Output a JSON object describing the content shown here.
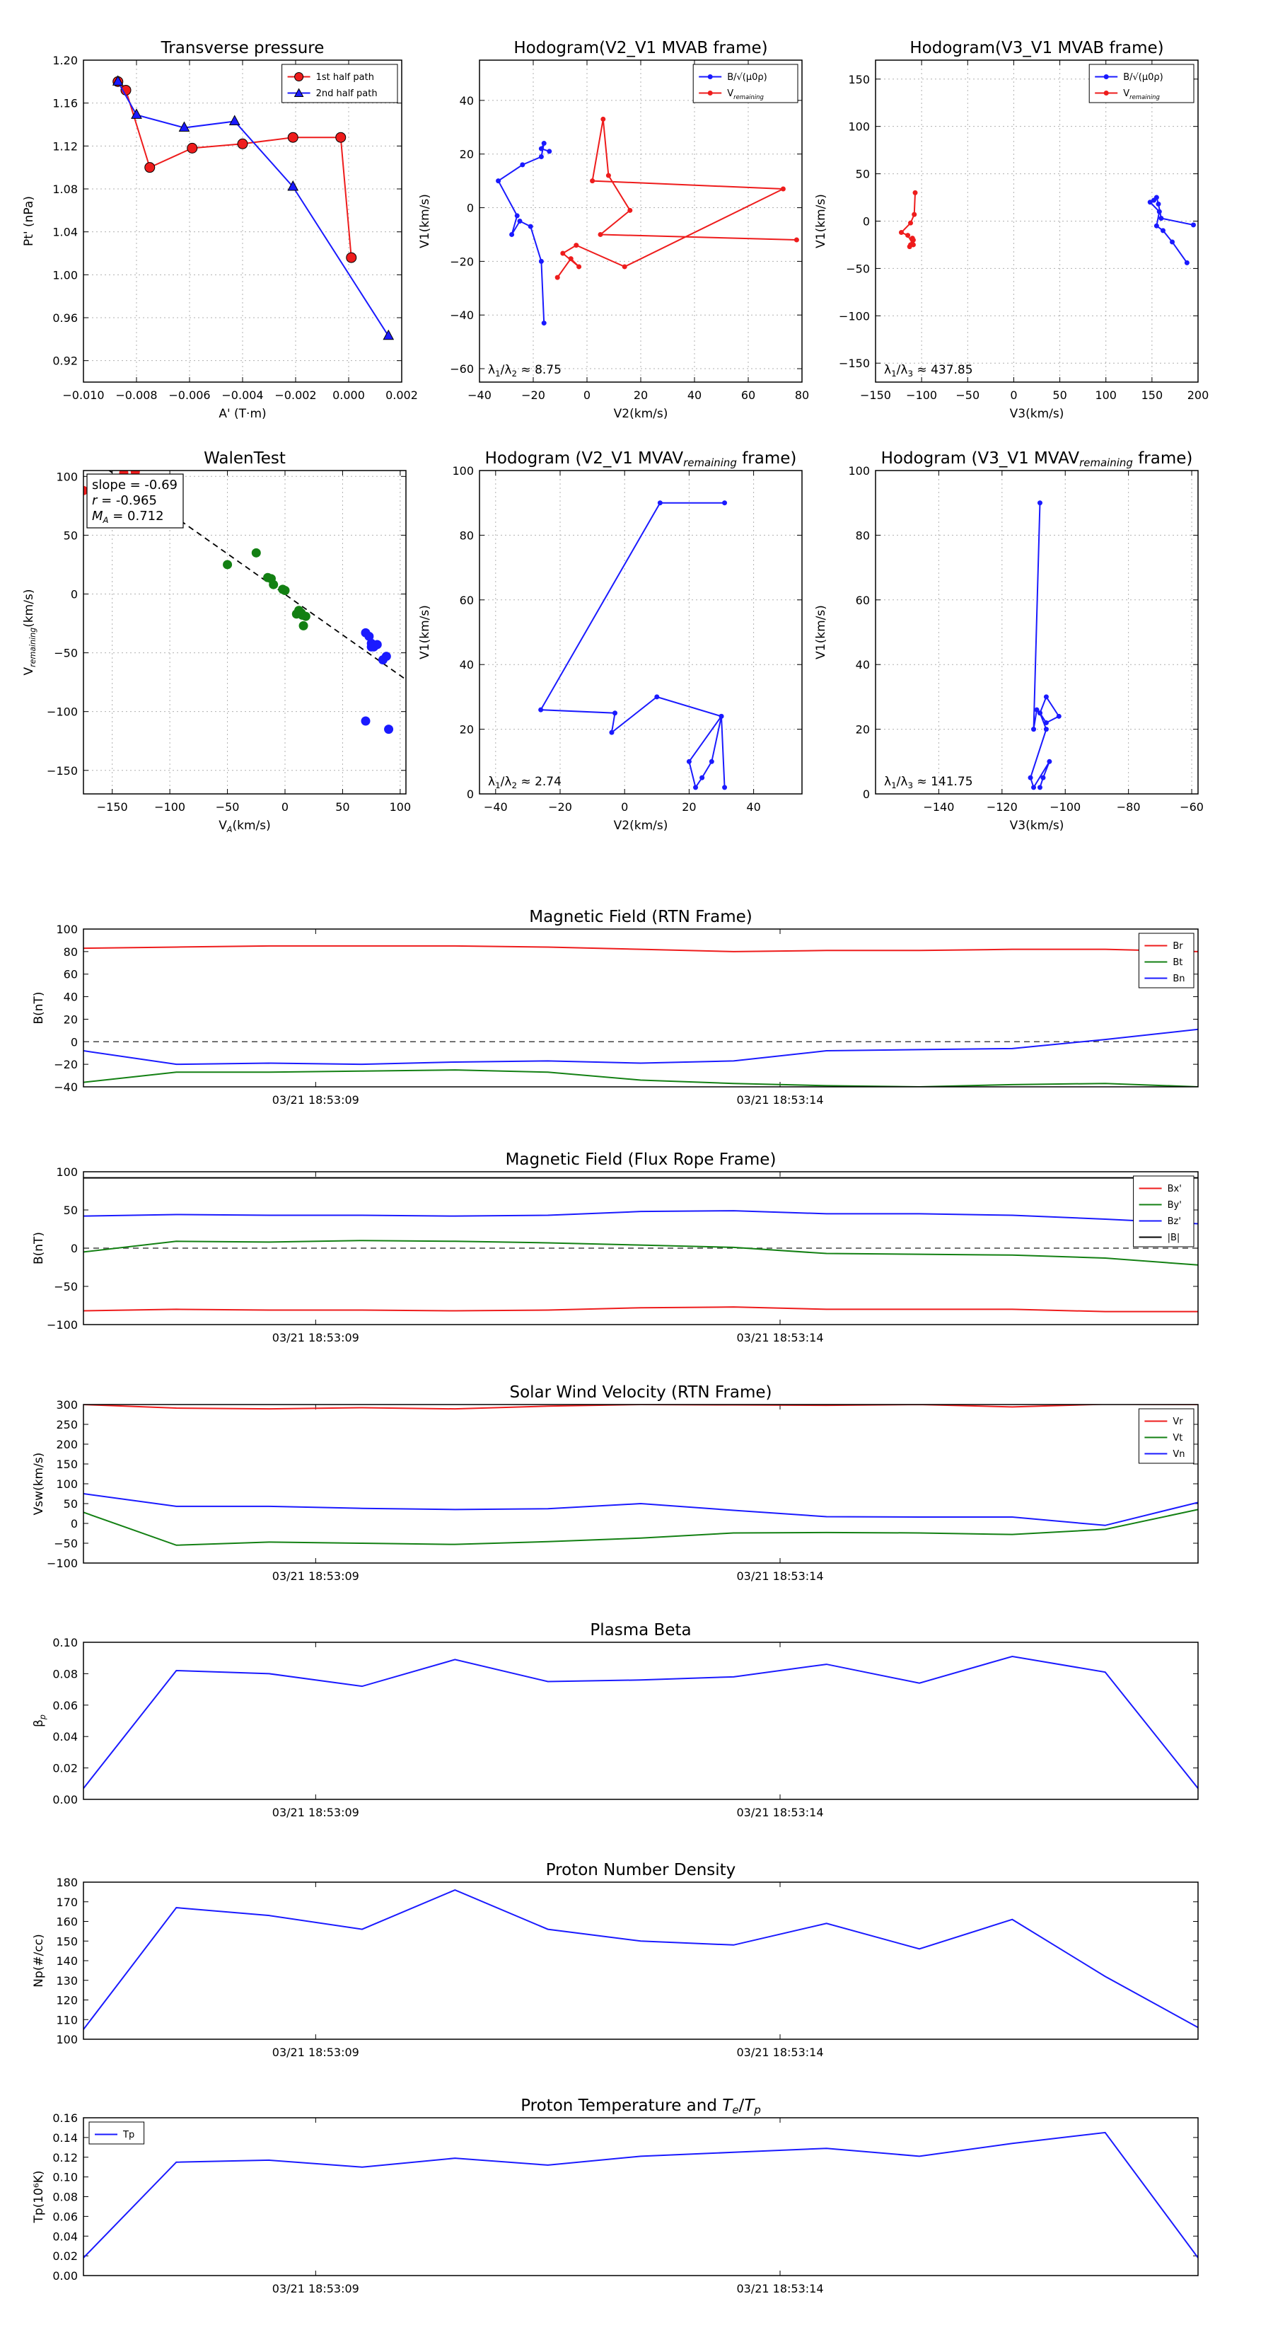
{
  "colors": {
    "red": "#ee1c1c",
    "blue": "#1a1aff",
    "green": "#138013",
    "black": "#000000",
    "grid": "#b0b0b0"
  },
  "chart_data": [
    {
      "id": "transverse-pressure",
      "type": "line",
      "title": "Transverse pressure",
      "xlabel": "A' (T·m)",
      "ylabel": "Pt' (nPa)",
      "xlim": [
        -0.01,
        0.002
      ],
      "ylim": [
        0.9,
        1.2
      ],
      "xticks": [
        "−0.010",
        "−0.008",
        "−0.006",
        "−0.004",
        "−0.002",
        "0.000",
        "0.002"
      ],
      "yticks": [
        "0.92",
        "0.96",
        "1.00",
        "1.04",
        "1.08",
        "1.12",
        "1.16",
        "1.20"
      ],
      "legend_placement": "top-right",
      "series": [
        {
          "name": "1st half path",
          "color": "red",
          "marker": "circle",
          "x": [
            -0.0087,
            -0.0084,
            -0.0075,
            -0.0059,
            -0.004,
            -0.0021,
            -0.0003,
            0.0001
          ],
          "y": [
            1.18,
            1.172,
            1.1,
            1.118,
            1.122,
            1.128,
            1.128,
            1.016
          ]
        },
        {
          "name": "2nd half path",
          "color": "blue",
          "marker": "triangle",
          "x": [
            -0.0087,
            -0.008,
            -0.0062,
            -0.0043,
            -0.0021,
            0.0015
          ],
          "y": [
            1.18,
            1.149,
            1.137,
            1.143,
            1.082,
            0.943
          ]
        }
      ]
    },
    {
      "id": "hodogram-v2v1-mvab",
      "type": "line",
      "title": "Hodogram(V2_V1 MVAB frame)",
      "xlabel": "V2(km/s)",
      "ylabel": "V1(km/s)",
      "xlim": [
        -40,
        80
      ],
      "ylim": [
        -65,
        55
      ],
      "xticks": [
        "−40",
        "−20",
        "0",
        "20",
        "40",
        "60",
        "80"
      ],
      "yticks": [
        "−60",
        "−40",
        "−20",
        "0",
        "20",
        "40"
      ],
      "legend_placement": "top-right",
      "annotation": "λ1/λ2 ≈ 8.75",
      "series": [
        {
          "name": "B/√(μ0ρ)",
          "color": "blue",
          "x": [
            -16,
            -17,
            -21,
            -25,
            -28,
            -26,
            -33,
            -24,
            -17,
            -16,
            -17,
            -14
          ],
          "y": [
            -43,
            -20,
            -7,
            -5,
            -10,
            -3,
            10,
            16,
            19,
            24,
            22,
            21
          ]
        },
        {
          "name": "V_remaining",
          "color": "red",
          "x": [
            -11,
            -6,
            -3,
            -9,
            -4,
            14,
            73,
            2,
            6,
            8,
            16,
            5,
            78
          ],
          "y": [
            -26,
            -19,
            -22,
            -17,
            -14,
            -22,
            7,
            10,
            33,
            12,
            -1,
            -10,
            -12
          ]
        }
      ]
    },
    {
      "id": "hodogram-v3v1-mvab",
      "type": "line",
      "title": "Hodogram(V3_V1 MVAB frame)",
      "xlabel": "V3(km/s)",
      "ylabel": "V1(km/s)",
      "xlim": [
        -150,
        200
      ],
      "ylim": [
        -170,
        170
      ],
      "xticks": [
        "−150",
        "−100",
        "−50",
        "0",
        "50",
        "100",
        "150",
        "200"
      ],
      "yticks": [
        "−150",
        "−100",
        "−50",
        "0",
        "50",
        "100",
        "150"
      ],
      "legend_placement": "top-right",
      "annotation": "λ1/λ3 ≈ 437.85",
      "series": [
        {
          "name": "B/√(μ0ρ)",
          "color": "blue",
          "x": [
            188,
            172,
            162,
            155,
            158,
            148,
            152,
            155,
            157,
            160,
            195
          ],
          "y": [
            -44,
            -22,
            -10,
            -5,
            10,
            20,
            22,
            25,
            18,
            3,
            -4
          ]
        },
        {
          "name": "V_remaining",
          "color": "red",
          "x": [
            -112,
            -110,
            -109,
            -113,
            -110,
            -109,
            -115,
            -122,
            -112,
            -108,
            -107
          ],
          "y": [
            -25,
            -18,
            -20,
            -27,
            -24,
            -25,
            -15,
            -12,
            -2,
            7,
            30
          ]
        }
      ]
    },
    {
      "id": "walen-test",
      "type": "scatter",
      "title": "WalenTest",
      "xlabel": "V_A(km/s)",
      "ylabel": "V_remaining(km/s)",
      "xlim": [
        -175,
        105
      ],
      "ylim": [
        -170,
        105
      ],
      "xticks": [
        "−150",
        "−100",
        "−50",
        "0",
        "50",
        "100"
      ],
      "yticks": [
        "−150",
        "−100",
        "−50",
        "0",
        "50",
        "100"
      ],
      "annotation_lines": [
        "slope = -0.69",
        "r = -0.965",
        "M_A = 0.712"
      ],
      "fit_line": {
        "slope": -0.69,
        "intercept": -0.3
      },
      "series": [
        {
          "name": "red",
          "color": "red",
          "x": [
            -175,
            -163,
            -140,
            -130
          ],
          "y": [
            88,
            97,
            103,
            104
          ]
        },
        {
          "name": "green",
          "color": "green",
          "x": [
            -50,
            -25,
            -15,
            -12,
            -10,
            0,
            -2,
            10,
            12,
            15,
            16,
            18,
            14
          ],
          "y": [
            25,
            35,
            14,
            13,
            8,
            3,
            4,
            -17,
            -14,
            -18,
            -27,
            -19,
            -16
          ]
        },
        {
          "name": "blue",
          "color": "blue",
          "x": [
            70,
            73,
            75,
            77,
            80,
            85,
            88,
            75,
            78,
            90,
            70
          ],
          "y": [
            -33,
            -36,
            -42,
            -45,
            -43,
            -56,
            -53,
            -45,
            -44,
            -115,
            -108
          ]
        }
      ]
    },
    {
      "id": "hodogram-v2v1-mvav",
      "type": "line",
      "title": "Hodogram (V2_V1 MVAV_remaining frame)",
      "xlabel": "V2(km/s)",
      "ylabel": "V1(km/s)",
      "xlim": [
        -45,
        55
      ],
      "ylim": [
        0,
        100
      ],
      "xticks": [
        "−40",
        "−20",
        "0",
        "20",
        "40"
      ],
      "yticks": [
        "0",
        "20",
        "40",
        "60",
        "80",
        "100"
      ],
      "annotation": "λ1/λ2 ≈ 2.74",
      "series": [
        {
          "name": "trace",
          "color": "blue",
          "x": [
            31,
            30,
            27,
            24,
            22,
            20,
            30,
            10,
            -4,
            -3,
            -26,
            11,
            31
          ],
          "y": [
            2,
            24,
            10,
            5,
            2,
            10,
            24,
            30,
            19,
            25,
            26,
            90,
            90
          ]
        }
      ]
    },
    {
      "id": "hodogram-v3v1-mvav",
      "type": "line",
      "title": "Hodogram (V3_V1 MVAV_remaining frame)",
      "xlabel": "V3(km/s)",
      "ylabel": "V1(km/s)",
      "xlim": [
        -160,
        -58
      ],
      "ylim": [
        0,
        100
      ],
      "xticks": [
        "−140",
        "−120",
        "−100",
        "−80",
        "−60"
      ],
      "yticks": [
        "0",
        "20",
        "40",
        "60",
        "80",
        "100"
      ],
      "annotation": "λ1/λ3 ≈ 141.75",
      "series": [
        {
          "name": "trace",
          "color": "blue",
          "x": [
            -108,
            -107,
            -105,
            -110,
            -111,
            -106,
            -108,
            -106,
            -102,
            -106,
            -108,
            -109,
            -110,
            -108
          ],
          "y": [
            2,
            5,
            10,
            2,
            5,
            20,
            25,
            30,
            24,
            22,
            25,
            26,
            20,
            90
          ]
        }
      ]
    },
    {
      "id": "magnetic-field-rtn",
      "type": "line",
      "title": "Magnetic Field (RTN Frame)",
      "ylabel": "B(nT)",
      "ylim": [
        -40,
        100
      ],
      "yticks": [
        "−40",
        "−20",
        "0",
        "20",
        "40",
        "60",
        "80",
        "100"
      ],
      "xtick_labels": [
        "03/21 18:53:09",
        "03/21 18:53:14"
      ],
      "xtick_positions": [
        2.5,
        7.5
      ],
      "n_points": 13,
      "legend_placement": "top-right",
      "zero_line": true,
      "series": [
        {
          "name": "Br",
          "color": "red",
          "values": [
            83,
            84,
            85,
            85,
            85,
            84,
            82,
            80,
            81,
            81,
            82,
            82,
            80
          ]
        },
        {
          "name": "Bt",
          "color": "green",
          "values": [
            -36,
            -27,
            -27,
            -26,
            -25,
            -27,
            -34,
            -37,
            -39,
            -40,
            -38,
            -37,
            -40
          ]
        },
        {
          "name": "Bn",
          "color": "blue",
          "values": [
            -8,
            -20,
            -19,
            -20,
            -18,
            -17,
            -19,
            -17,
            -8,
            -7,
            -6,
            2,
            11
          ]
        }
      ]
    },
    {
      "id": "magnetic-field-flux-rope",
      "type": "line",
      "title": "Magnetic Field (Flux Rope Frame)",
      "ylabel": "B(nT)",
      "ylim": [
        -100,
        100
      ],
      "yticks": [
        "−100",
        "−50",
        "0",
        "50",
        "100"
      ],
      "xtick_labels": [
        "03/21 18:53:09",
        "03/21 18:53:14"
      ],
      "xtick_positions": [
        2.5,
        7.5
      ],
      "n_points": 13,
      "legend_placement": "top-right",
      "zero_line": true,
      "series": [
        {
          "name": "Bx'",
          "color": "red",
          "values": [
            -82,
            -80,
            -81,
            -81,
            -82,
            -81,
            -78,
            -77,
            -80,
            -80,
            -80,
            -83,
            -83
          ]
        },
        {
          "name": "By'",
          "color": "green",
          "values": [
            -5,
            9,
            8,
            10,
            9,
            7,
            4,
            1,
            -7,
            -8,
            -9,
            -13,
            -22
          ]
        },
        {
          "name": "Bz'",
          "color": "blue",
          "values": [
            42,
            44,
            43,
            43,
            42,
            43,
            48,
            49,
            45,
            45,
            43,
            38,
            32
          ]
        },
        {
          "name": "|B|",
          "color": "black",
          "values": [
            92,
            92,
            92,
            92,
            92,
            92,
            92,
            92,
            92,
            92,
            92,
            92,
            92
          ]
        }
      ]
    },
    {
      "id": "solar-wind-velocity",
      "type": "line",
      "title": "Solar Wind Velocity (RTN Frame)",
      "ylabel": "Vsw(km/s)",
      "ylim": [
        -100,
        300
      ],
      "yticks": [
        "−100",
        "−50",
        "0",
        "50",
        "100",
        "150",
        "200",
        "250",
        "300"
      ],
      "xtick_labels": [
        "03/21 18:53:09",
        "03/21 18:53:14"
      ],
      "xtick_positions": [
        2.5,
        7.5
      ],
      "n_points": 13,
      "legend_placement": "top-right",
      "series": [
        {
          "name": "Vr",
          "color": "red",
          "values": [
            300,
            291,
            289,
            292,
            289,
            296,
            300,
            299,
            298,
            300,
            294,
            301,
            300
          ]
        },
        {
          "name": "Vt",
          "color": "green",
          "values": [
            28,
            -55,
            -47,
            -50,
            -53,
            -46,
            -37,
            -24,
            -23,
            -24,
            -28,
            -15,
            35
          ]
        },
        {
          "name": "Vn",
          "color": "blue",
          "values": [
            75,
            43,
            43,
            38,
            35,
            37,
            50,
            33,
            17,
            16,
            16,
            -5,
            53
          ]
        }
      ]
    },
    {
      "id": "plasma-beta",
      "type": "line",
      "title": "Plasma Beta",
      "ylabel": "βp",
      "ylim": [
        0,
        0.1
      ],
      "yticks": [
        "0.00",
        "0.02",
        "0.04",
        "0.06",
        "0.08",
        "0.10"
      ],
      "xtick_labels": [
        "03/21 18:53:09",
        "03/21 18:53:14"
      ],
      "xtick_positions": [
        2.5,
        7.5
      ],
      "n_points": 13,
      "series": [
        {
          "name": "beta",
          "color": "blue",
          "values": [
            0.007,
            0.082,
            0.08,
            0.072,
            0.089,
            0.075,
            0.076,
            0.078,
            0.086,
            0.074,
            0.091,
            0.081,
            0.007
          ]
        }
      ]
    },
    {
      "id": "proton-number-density",
      "type": "line",
      "title": "Proton Number Density",
      "ylabel": "Np(#/cc)",
      "ylim": [
        100,
        180
      ],
      "yticks": [
        "100",
        "110",
        "120",
        "130",
        "140",
        "150",
        "160",
        "170",
        "180"
      ],
      "xtick_labels": [
        "03/21 18:53:09",
        "03/21 18:53:14"
      ],
      "xtick_positions": [
        2.5,
        7.5
      ],
      "n_points": 13,
      "series": [
        {
          "name": "Np",
          "color": "blue",
          "values": [
            105,
            167,
            163,
            156,
            176,
            156,
            150,
            148,
            159,
            146,
            161,
            132,
            106
          ]
        }
      ]
    },
    {
      "id": "proton-temperature",
      "type": "line",
      "title": "Proton Temperature and Te/Tp",
      "ylabel": "Tp(10⁶K)",
      "ylim": [
        0,
        0.16
      ],
      "yticks": [
        "0.00",
        "0.02",
        "0.04",
        "0.06",
        "0.08",
        "0.10",
        "0.12",
        "0.14",
        "0.16"
      ],
      "xtick_labels": [
        "03/21 18:53:09",
        "03/21 18:53:14"
      ],
      "xtick_positions": [
        2.5,
        7.5
      ],
      "n_points": 13,
      "legend_placement": "top-left",
      "series": [
        {
          "name": "Tp",
          "color": "blue",
          "values": [
            0.018,
            0.115,
            0.117,
            0.11,
            0.119,
            0.112,
            0.121,
            0.125,
            0.129,
            0.121,
            0.134,
            0.145,
            0.018
          ]
        }
      ]
    }
  ]
}
